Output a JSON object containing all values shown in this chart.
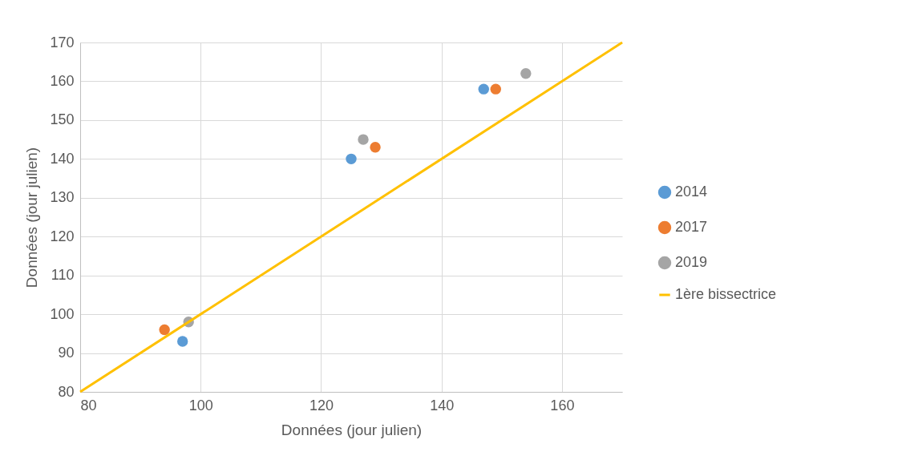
{
  "chart_data": {
    "type": "scatter",
    "xlabel": "Données (jour julien)",
    "ylabel": "Données (jour julien)",
    "xlim": [
      80,
      170
    ],
    "xticks": [
      80,
      100,
      120,
      140,
      160
    ],
    "ylim": [
      80,
      170
    ],
    "yticks": [
      80,
      90,
      100,
      110,
      120,
      130,
      140,
      150,
      160,
      170
    ],
    "grid": true,
    "legend": "right",
    "series": [
      {
        "name": "2014",
        "color": "#5b9bd5",
        "marker": "circle",
        "x": [
          97,
          125,
          147
        ],
        "values": [
          93,
          140,
          158
        ]
      },
      {
        "name": "2017",
        "color": "#ed7d31",
        "marker": "circle",
        "x": [
          94,
          129,
          149
        ],
        "values": [
          96,
          143,
          158
        ]
      },
      {
        "name": "2019",
        "color": "#a5a5a5",
        "marker": "circle",
        "x": [
          98,
          127,
          154
        ],
        "values": [
          98,
          145,
          162
        ]
      },
      {
        "name": "1ère bissectrice",
        "type": "line",
        "color": "#ffc000",
        "x": [
          80,
          170
        ],
        "values": [
          80,
          170
        ],
        "line_style": "solid",
        "marker": "none"
      }
    ]
  }
}
